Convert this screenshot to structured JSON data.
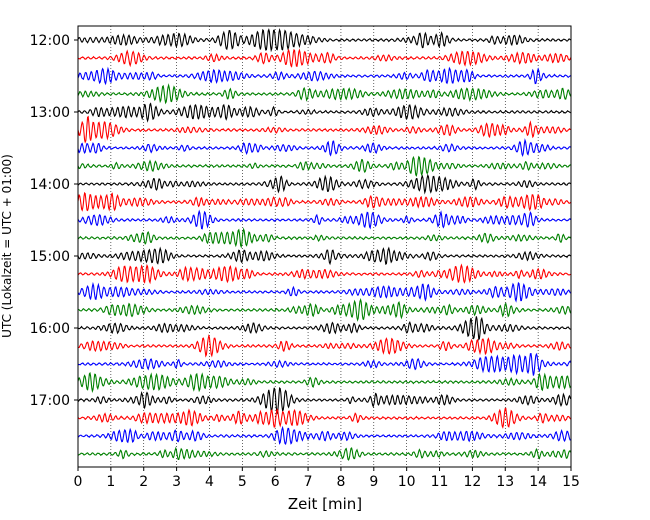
{
  "chart_data": {
    "type": "line",
    "title": "",
    "xlabel": "Zeit  [min]",
    "ylabel": "UTC (Lokalzeit = UTC + 01:00)",
    "xlim": [
      0,
      15
    ],
    "x_ticks": [
      "0",
      "1",
      "2",
      "3",
      "4",
      "5",
      "6",
      "7",
      "8",
      "9",
      "10",
      "11",
      "12",
      "13",
      "14",
      "15"
    ],
    "y_ticks": [
      "12:00",
      "13:00",
      "14:00",
      "15:00",
      "16:00",
      "17:00"
    ],
    "trace_interval_minutes": 15,
    "grid": "vertical dotted",
    "colors": [
      "#000000",
      "#ff0000",
      "#0000ff",
      "#008000"
    ],
    "series": [
      {
        "start": "12:00",
        "color": "#000000"
      },
      {
        "start": "12:15",
        "color": "#ff0000"
      },
      {
        "start": "12:30",
        "color": "#0000ff"
      },
      {
        "start": "12:45",
        "color": "#008000"
      },
      {
        "start": "13:00",
        "color": "#000000"
      },
      {
        "start": "13:15",
        "color": "#ff0000"
      },
      {
        "start": "13:30",
        "color": "#0000ff"
      },
      {
        "start": "13:45",
        "color": "#008000"
      },
      {
        "start": "14:00",
        "color": "#000000"
      },
      {
        "start": "14:15",
        "color": "#ff0000"
      },
      {
        "start": "14:30",
        "color": "#0000ff"
      },
      {
        "start": "14:45",
        "color": "#008000"
      },
      {
        "start": "15:00",
        "color": "#000000"
      },
      {
        "start": "15:15",
        "color": "#ff0000"
      },
      {
        "start": "15:30",
        "color": "#0000ff"
      },
      {
        "start": "15:45",
        "color": "#008000"
      },
      {
        "start": "16:00",
        "color": "#000000"
      },
      {
        "start": "16:15",
        "color": "#ff0000"
      },
      {
        "start": "16:30",
        "color": "#0000ff"
      },
      {
        "start": "16:45",
        "color": "#008000"
      },
      {
        "start": "17:00",
        "color": "#000000"
      },
      {
        "start": "17:15",
        "color": "#ff0000"
      },
      {
        "start": "17:30",
        "color": "#0000ff"
      },
      {
        "start": "17:45",
        "color": "#008000"
      }
    ]
  }
}
